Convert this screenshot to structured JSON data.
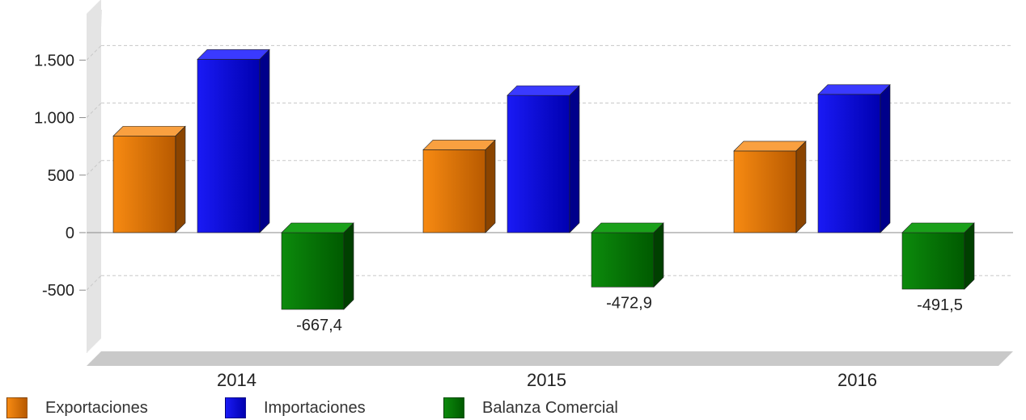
{
  "chart_data": {
    "type": "bar",
    "categories": [
      "2014",
      "2015",
      "2016"
    ],
    "series": [
      {
        "name": "Exportaciones",
        "values": [
          840,
          720,
          710
        ],
        "color": "#E8760A"
      },
      {
        "name": "Importaciones",
        "values": [
          1507,
          1193,
          1202
        ],
        "color": "#0A0AD8"
      },
      {
        "name": "Balanza Comercial",
        "values": [
          -667.4,
          -472.9,
          -491.5
        ],
        "color": "#0A7A0A"
      }
    ],
    "data_labels": {
      "Balanza Comercial": [
        "-667,4",
        "-472,9",
        "-491,5"
      ]
    },
    "y_ticks": [
      -500,
      0,
      500,
      1000,
      1500
    ],
    "y_tick_labels": [
      "-500",
      "0",
      "500",
      "1.000",
      "1.500"
    ],
    "ylim": [
      -1100,
      1600
    ],
    "grid": true,
    "legend_position": "bottom-left",
    "title": "",
    "xlabel": "",
    "ylabel": ""
  }
}
